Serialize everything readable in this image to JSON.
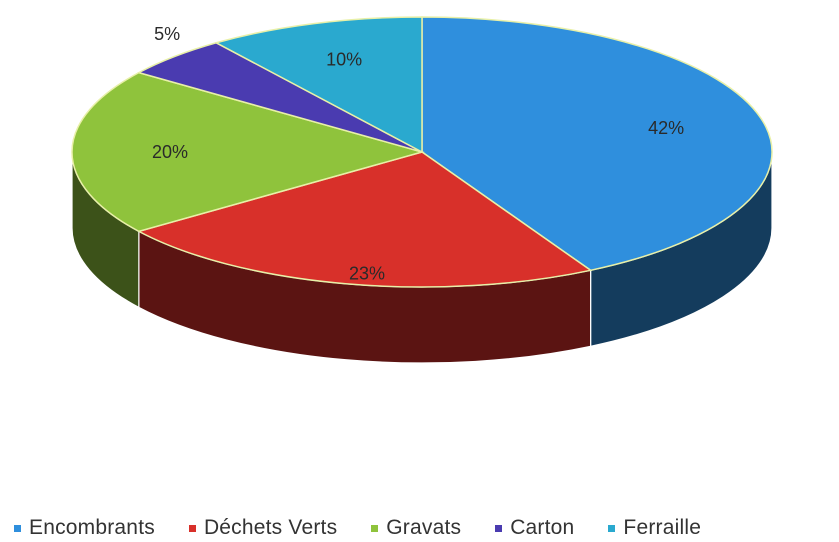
{
  "chart_data": {
    "type": "pie",
    "style": "3d",
    "categories": [
      "Encombrants",
      "Déchets Verts",
      "Gravats",
      "Carton",
      "Ferraille"
    ],
    "values": [
      42,
      23,
      20,
      5,
      10
    ],
    "labels": [
      "42%",
      "23%",
      "20%",
      "5%",
      "10%"
    ],
    "colors": [
      "#2f8fdd",
      "#d8302a",
      "#8fc33c",
      "#4a3bb0",
      "#2aa9cf"
    ],
    "legend_position": "bottom"
  }
}
